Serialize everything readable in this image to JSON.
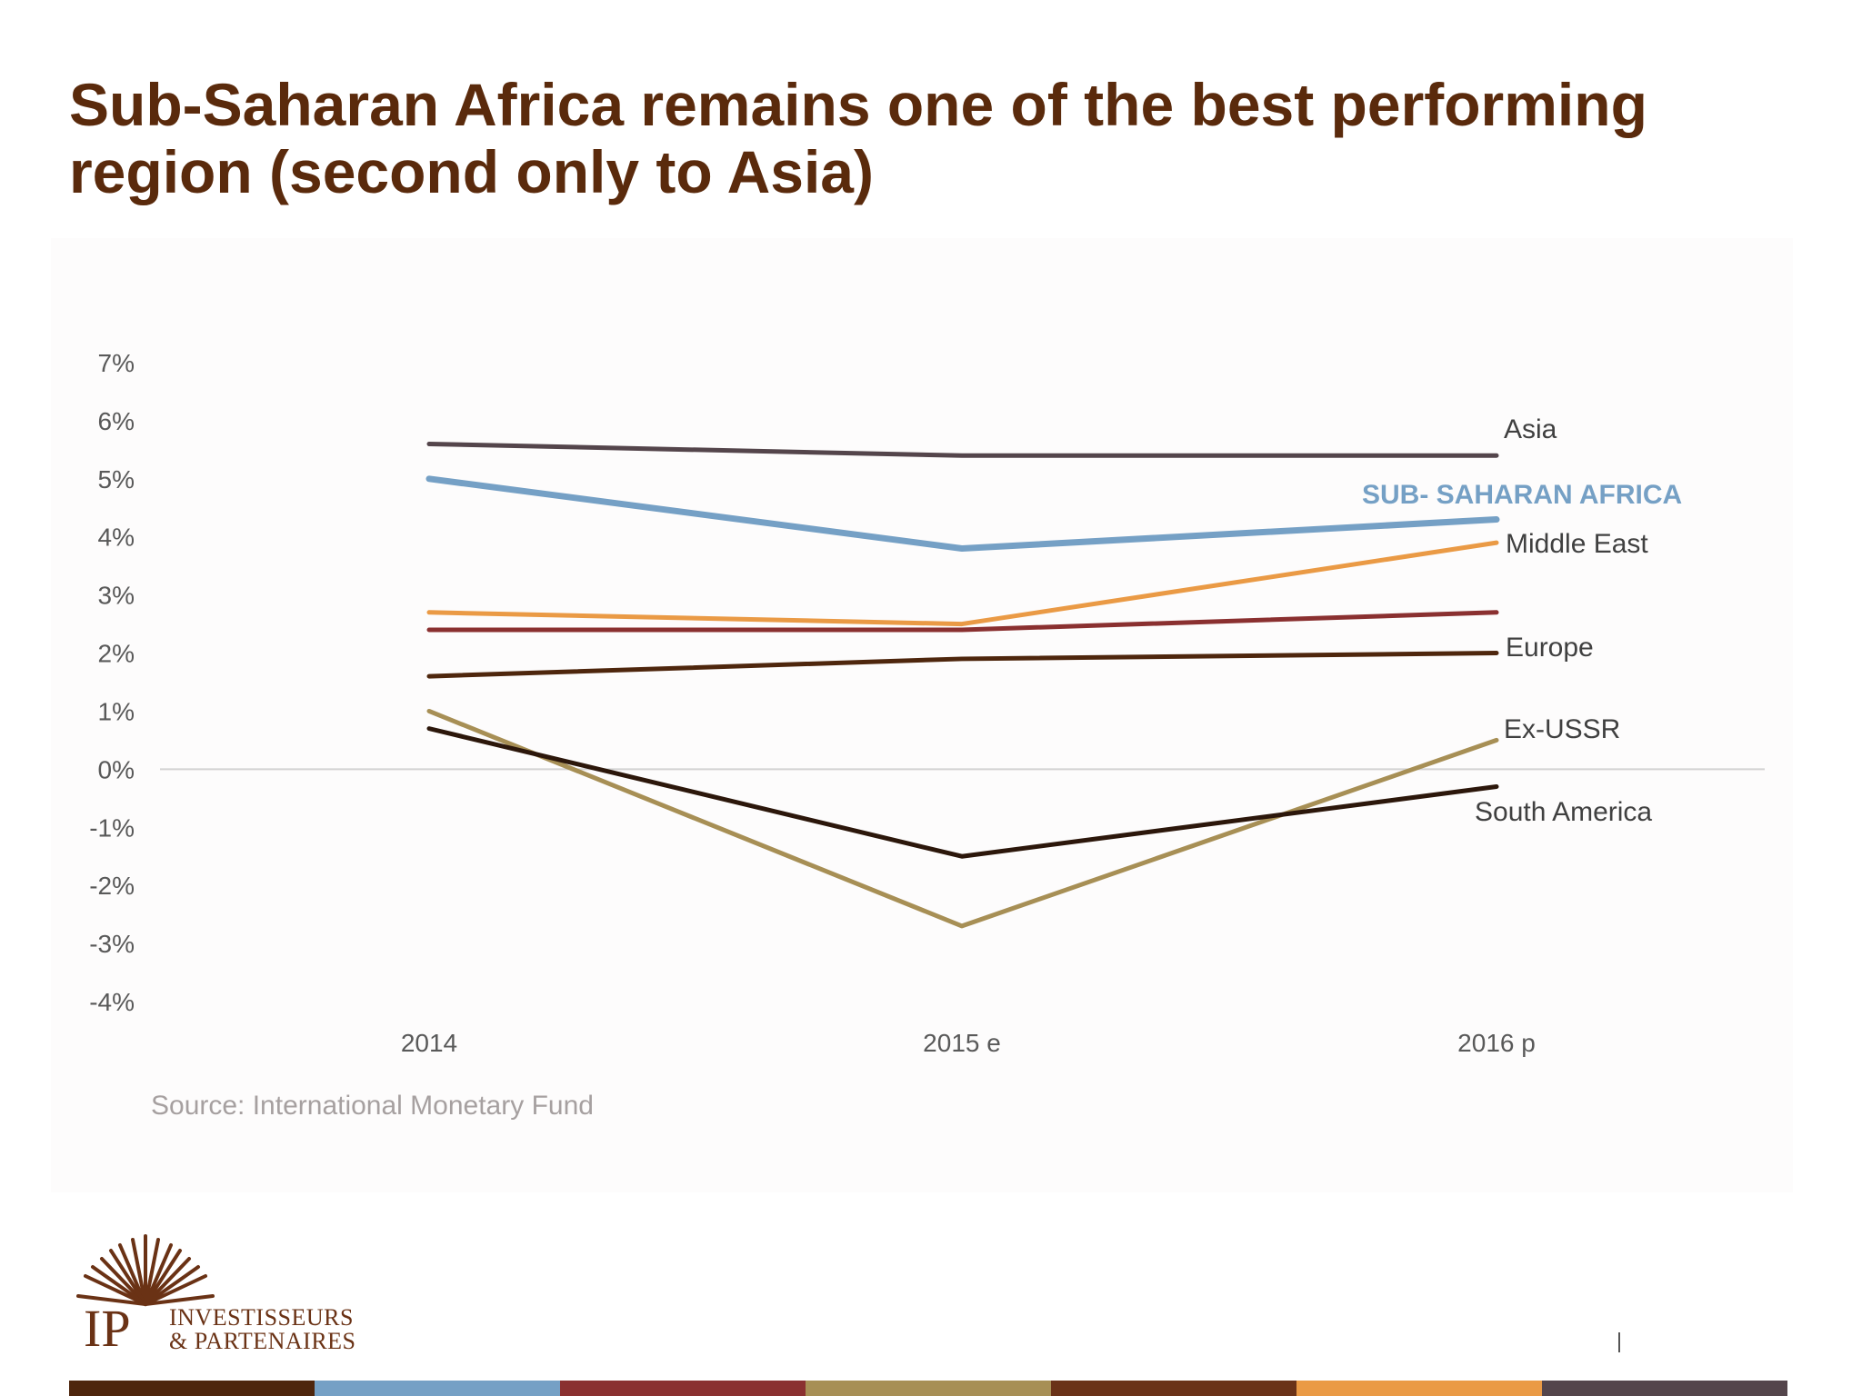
{
  "slide": {
    "title": "Sub-Saharan Africa remains one of the best performing region (second only to Asia)",
    "source": "Source: International Monetary Fund"
  },
  "logo": {
    "monogram": "IP",
    "line1": "INVESTISSEURS",
    "line2": "& PARTENAIRES"
  },
  "colors": {
    "title": "#5a2a0c",
    "bottom_bar": [
      "#4e260d",
      "#75a0c5",
      "#8a3030",
      "#a78f55",
      "#6a3218",
      "#ea9a45",
      "#54454b"
    ]
  },
  "chart_data": {
    "type": "line",
    "categories": [
      "2014",
      "2015 e",
      "2016 p"
    ],
    "y_ticks": [
      "7%",
      "6%",
      "5%",
      "4%",
      "3%",
      "2%",
      "1%",
      "0%",
      "-1%",
      "-2%",
      "-3%",
      "-4%"
    ],
    "ylim": [
      -4,
      7
    ],
    "grid": false,
    "series": [
      {
        "name": "Asia",
        "values": [
          5.6,
          5.4,
          5.4
        ],
        "color": "#54454b"
      },
      {
        "name": "SUB- SAHARAN AFRICA",
        "values": [
          5.0,
          3.8,
          4.3
        ],
        "color": "#75a0c5"
      },
      {
        "name": "Middle East",
        "values": [
          2.7,
          2.5,
          3.9
        ],
        "color": "#ea9a45"
      },
      {
        "name": "",
        "values": [
          2.4,
          2.4,
          2.7
        ],
        "color": "#8a3030"
      },
      {
        "name": "Europe",
        "values": [
          1.6,
          1.9,
          2.0
        ],
        "color": "#4e260d"
      },
      {
        "name": "Ex-USSR",
        "values": [
          1.0,
          -2.7,
          0.5
        ],
        "color": "#a78f55"
      },
      {
        "name": "South America",
        "values": [
          0.7,
          -1.5,
          -0.3
        ],
        "color": "#2c170b"
      }
    ]
  }
}
